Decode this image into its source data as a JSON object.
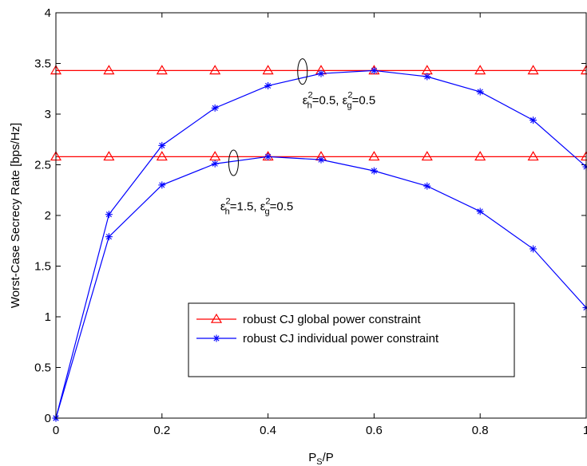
{
  "chart_data": {
    "type": "line",
    "title": "",
    "xlabel": {
      "main": "P",
      "sub": "S",
      "rest": "/P"
    },
    "ylabel": "Worst-Case Secrecy Rate [bps/Hz]",
    "xlim": [
      0,
      1
    ],
    "ylim": [
      0,
      4
    ],
    "xticks": [
      0,
      0.2,
      0.4,
      0.6,
      0.8,
      1
    ],
    "xtick_labels": [
      "0",
      "0.2",
      "0.4",
      "0.6",
      "0.8",
      "1"
    ],
    "yticks": [
      0,
      0.5,
      1,
      1.5,
      2,
      2.5,
      3,
      3.5,
      4
    ],
    "ytick_labels": [
      "0",
      "0.5",
      "1",
      "1.5",
      "2",
      "2.5",
      "3",
      "3.5",
      "4"
    ],
    "grid": false,
    "legend_position": "lower-right",
    "x": [
      0,
      0.1,
      0.2,
      0.3,
      0.4,
      0.5,
      0.6,
      0.7,
      0.8,
      0.9,
      1.0
    ],
    "series": [
      {
        "name": "robust CJ global power constraint",
        "group": "upper",
        "color": "#ff0000",
        "marker": "triangle",
        "values": [
          3.43,
          3.43,
          3.43,
          3.43,
          3.43,
          3.43,
          3.43,
          3.43,
          3.43,
          3.43,
          3.43
        ]
      },
      {
        "name": "robust CJ global power constraint",
        "group": "lower",
        "color": "#ff0000",
        "marker": "triangle",
        "values": [
          2.58,
          2.58,
          2.58,
          2.58,
          2.58,
          2.58,
          2.58,
          2.58,
          2.58,
          2.58,
          2.58
        ]
      },
      {
        "name": "robust CJ individual power constraint",
        "group": "upper",
        "color": "#0000ff",
        "marker": "star",
        "values": [
          0.0,
          2.01,
          2.69,
          3.06,
          3.28,
          3.4,
          3.43,
          3.37,
          3.22,
          2.94,
          2.48
        ]
      },
      {
        "name": "robust CJ individual power constraint",
        "group": "lower",
        "color": "#0000ff",
        "marker": "star",
        "values": [
          0.0,
          1.79,
          2.3,
          2.51,
          2.58,
          2.55,
          2.44,
          2.29,
          2.04,
          1.67,
          1.09
        ]
      }
    ],
    "legend": [
      {
        "label": "robust CJ global power constraint",
        "color": "#ff0000",
        "marker": "triangle"
      },
      {
        "label": "robust CJ individual power constraint",
        "color": "#0000ff",
        "marker": "star"
      }
    ],
    "annotations": [
      {
        "id": "upper",
        "ellipse_at": [
          0.465,
          3.42
        ],
        "text_at": [
          0.465,
          3.1
        ],
        "parts": [
          "ε",
          "2",
          "h",
          "=0.5, ε",
          "2",
          "g",
          "=0.5"
        ]
      },
      {
        "id": "lower",
        "ellipse_at": [
          0.335,
          2.52
        ],
        "text_at": [
          0.31,
          2.05
        ],
        "parts": [
          "ε",
          "2",
          "h",
          "=1.5, ε",
          "2",
          "g",
          "=0.5"
        ]
      }
    ]
  }
}
